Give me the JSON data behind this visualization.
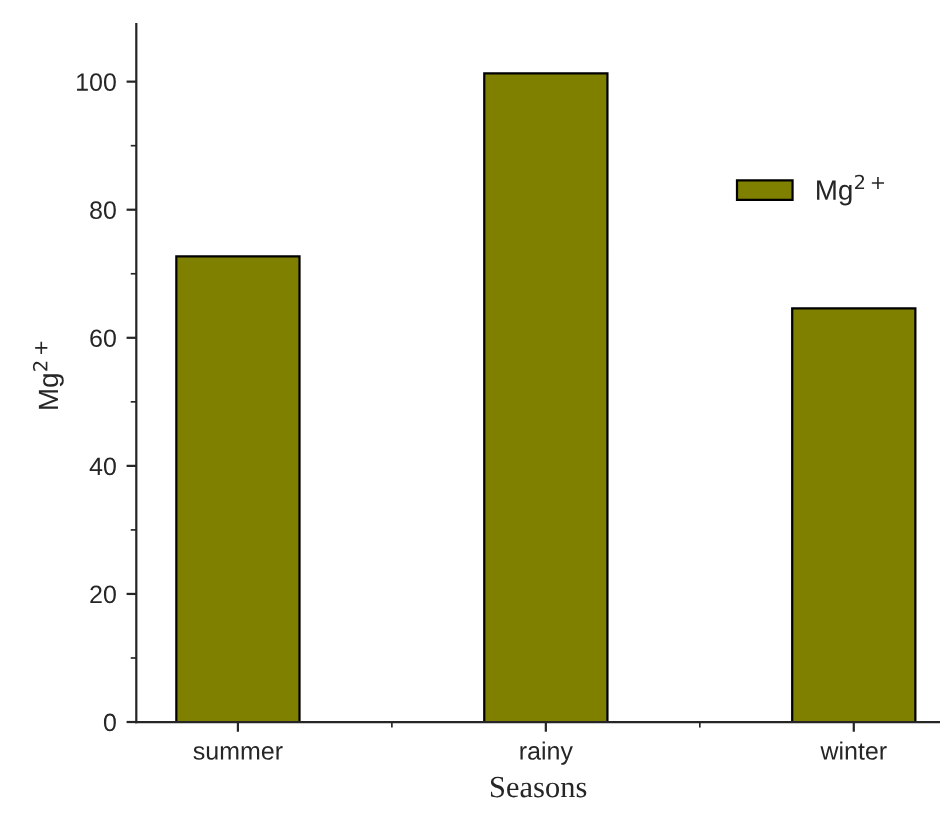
{
  "chart_data": {
    "type": "bar",
    "xlabel": "Seasons",
    "ylabel": "Mg$^{2+}$",
    "categories": [
      "summer",
      "rainy",
      "winter"
    ],
    "series": [
      {
        "name": "Mg$^{2+}$",
        "color": "#808000",
        "values": [
          72.7,
          101.3,
          64.6
        ]
      }
    ],
    "ylim": [
      0,
      109
    ],
    "yticks": [
      0,
      20,
      40,
      60,
      80,
      100
    ],
    "grid": false,
    "legend": "top right"
  }
}
